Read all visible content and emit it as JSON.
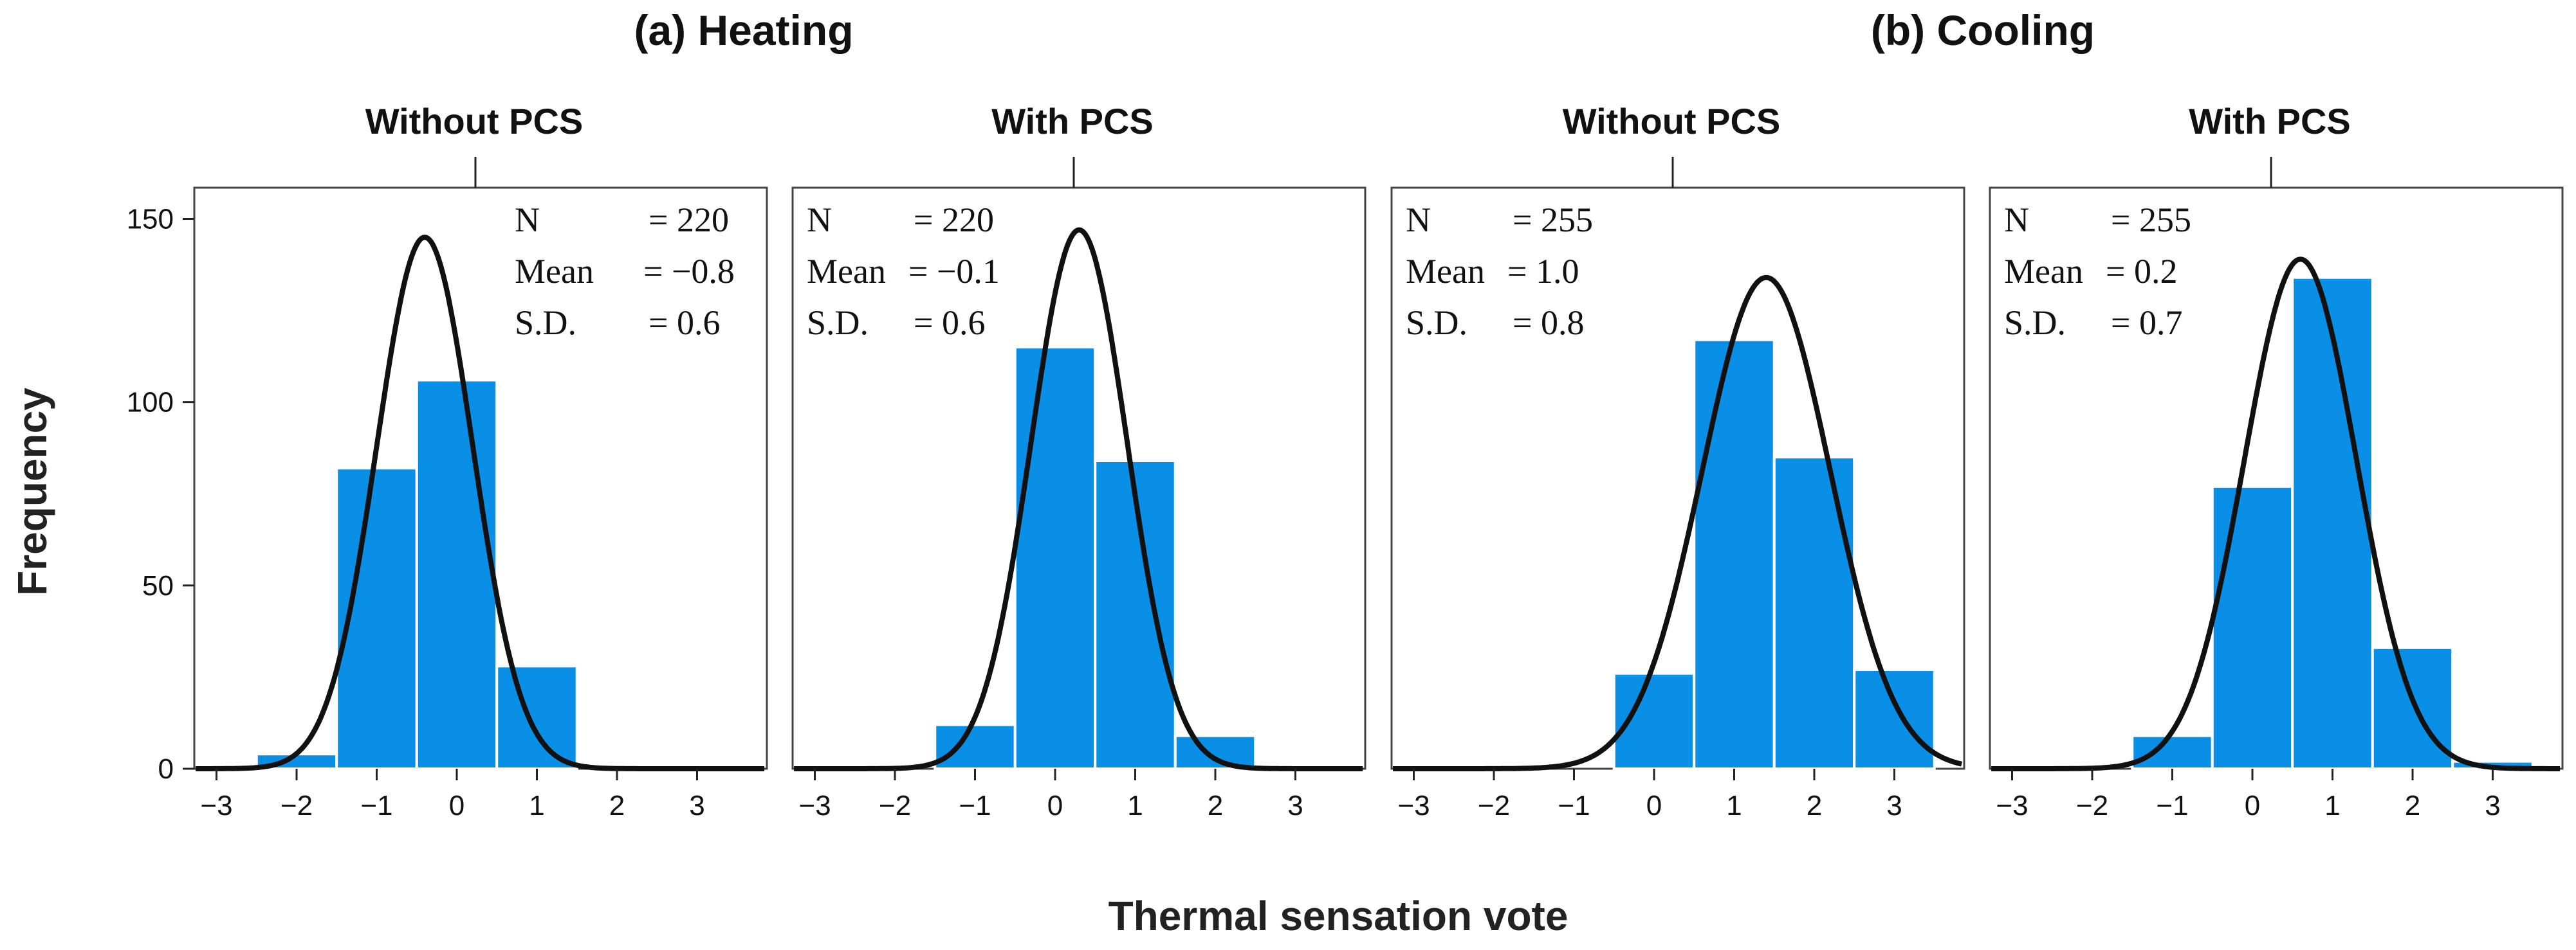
{
  "figure": {
    "group_titles": [
      "(a) Heating",
      "(b) Cooling"
    ],
    "xlabel": "Thermal sensation vote",
    "ylabel": "Frequency",
    "colors": {
      "bar": "#0a8fe6",
      "curve": "#111111"
    }
  },
  "chart_data": [
    {
      "type": "bar",
      "group": "(a) Heating",
      "title": "Without PCS",
      "x": [
        -3,
        -2,
        -1,
        0,
        1,
        2,
        3
      ],
      "values": [
        0,
        4,
        82,
        106,
        28,
        0,
        0
      ],
      "stats": {
        "n_label": "N",
        "n_value": "= 220",
        "mean_label": "Mean",
        "mean_value": "= −0.8",
        "sd_label": "S.D.",
        "sd_value": "= 0.6"
      },
      "curve": {
        "mean": -0.8,
        "sd": 0.6,
        "peak": 145
      },
      "ylim": [
        0,
        160
      ],
      "yticks": [
        0,
        50,
        100,
        150
      ],
      "xticks": [
        "−3",
        "−2",
        "−1",
        "0",
        "1",
        "2",
        "3"
      ]
    },
    {
      "type": "bar",
      "group": "(a) Heating",
      "title": "With PCS",
      "x": [
        -3,
        -2,
        -1,
        0,
        1,
        2,
        3
      ],
      "values": [
        0,
        0,
        12,
        115,
        84,
        9,
        0
      ],
      "stats": {
        "n_label": "N",
        "n_value": "= 220",
        "mean_label": "Mean",
        "mean_value": "= −0.1",
        "sd_label": "S.D.",
        "sd_value": "= 0.6"
      },
      "curve": {
        "mean": -0.1,
        "sd": 0.6,
        "peak": 147
      },
      "ylim": [
        0,
        160
      ],
      "xticks": [
        "−3",
        "−2",
        "−1",
        "0",
        "1",
        "2",
        "3"
      ]
    },
    {
      "type": "bar",
      "group": "(b) Cooling",
      "title": "Without PCS",
      "x": [
        -3,
        -2,
        -1,
        0,
        1,
        2,
        3
      ],
      "values": [
        0,
        0,
        0,
        26,
        117,
        85,
        27
      ],
      "stats": {
        "n_label": "N",
        "n_value": "= 255",
        "mean_label": "Mean",
        "mean_value": "= 1.0",
        "sd_label": "S.D.",
        "sd_value": "= 0.8"
      },
      "curve": {
        "mean": 1.0,
        "sd": 0.8,
        "peak": 134
      },
      "ylim": [
        0,
        160
      ],
      "xticks": [
        "−3",
        "−2",
        "−1",
        "0",
        "1",
        "2",
        "3"
      ]
    },
    {
      "type": "bar",
      "group": "(b) Cooling",
      "title": "With PCS",
      "x": [
        -3,
        -2,
        -1,
        0,
        1,
        2,
        3
      ],
      "values": [
        0,
        0,
        9,
        77,
        134,
        33,
        2
      ],
      "stats": {
        "n_label": "N",
        "n_value": "= 255",
        "mean_label": "Mean",
        "mean_value": "= 0.2",
        "sd_label": "S.D.",
        "sd_value": "= 0.7"
      },
      "curve": {
        "mean": 0.2,
        "sd": 0.7,
        "peak": 139
      },
      "ylim": [
        0,
        160
      ],
      "xticks": [
        "−3",
        "−2",
        "−1",
        "0",
        "1",
        "2",
        "3"
      ]
    }
  ]
}
